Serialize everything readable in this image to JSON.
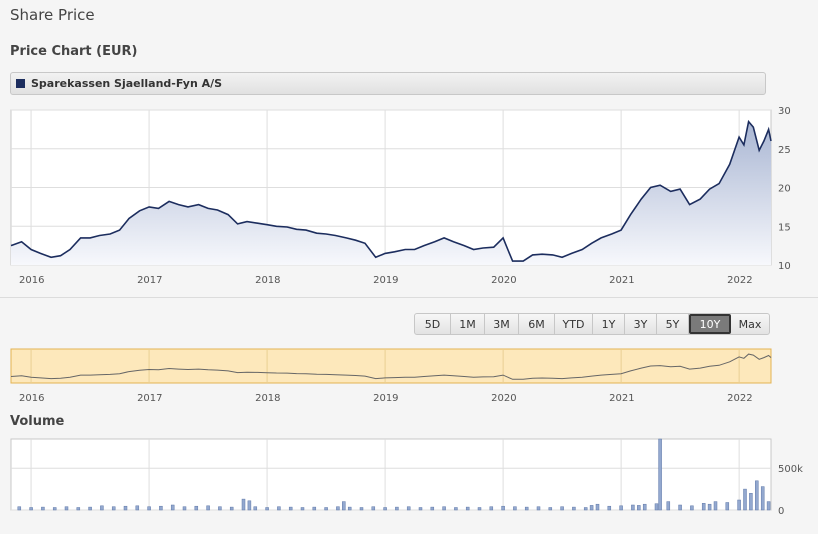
{
  "page": {
    "title": "Share Price"
  },
  "chart_title": "Price Chart (EUR)",
  "legend": {
    "label": "Sparekassen Sjaelland-Fyn A/S",
    "color": "#1c2d5e"
  },
  "range_buttons": [
    {
      "label": "5D",
      "active": false
    },
    {
      "label": "1M",
      "active": false
    },
    {
      "label": "3M",
      "active": false
    },
    {
      "label": "6M",
      "active": false
    },
    {
      "label": "YTD",
      "active": false
    },
    {
      "label": "1Y",
      "active": false
    },
    {
      "label": "3Y",
      "active": false
    },
    {
      "label": "5Y",
      "active": false
    },
    {
      "label": "10Y",
      "active": true
    },
    {
      "label": "Max",
      "active": false
    }
  ],
  "volume_title": "Volume",
  "chart_data": [
    {
      "type": "area",
      "series": [
        {
          "name": "Sparekassen Sjaelland-Fyn A/S",
          "color": "#1c2d5e",
          "x": [
            2015.83,
            2015.92,
            2016.0,
            2016.08,
            2016.17,
            2016.25,
            2016.33,
            2016.42,
            2016.5,
            2016.58,
            2016.67,
            2016.75,
            2016.83,
            2016.92,
            2017.0,
            2017.08,
            2017.17,
            2017.25,
            2017.33,
            2017.42,
            2017.5,
            2017.58,
            2017.67,
            2017.75,
            2017.83,
            2017.92,
            2018.0,
            2018.08,
            2018.17,
            2018.25,
            2018.33,
            2018.42,
            2018.5,
            2018.58,
            2018.67,
            2018.75,
            2018.83,
            2018.92,
            2019.0,
            2019.08,
            2019.17,
            2019.25,
            2019.33,
            2019.42,
            2019.5,
            2019.58,
            2019.67,
            2019.75,
            2019.83,
            2019.92,
            2020.0,
            2020.04,
            2020.08,
            2020.17,
            2020.25,
            2020.33,
            2020.42,
            2020.5,
            2020.58,
            2020.67,
            2020.75,
            2020.83,
            2020.92,
            2021.0,
            2021.08,
            2021.17,
            2021.25,
            2021.33,
            2021.42,
            2021.5,
            2021.58,
            2021.67,
            2021.75,
            2021.83,
            2021.92,
            2022.0,
            2022.04,
            2022.08,
            2022.12,
            2022.17,
            2022.21,
            2022.25,
            2022.27
          ],
          "y": [
            12.5,
            13.0,
            12.0,
            11.5,
            11.0,
            11.2,
            12.0,
            13.5,
            13.5,
            13.8,
            14.0,
            14.5,
            16.0,
            17.0,
            17.5,
            17.3,
            18.2,
            17.8,
            17.5,
            17.8,
            17.3,
            17.1,
            16.5,
            15.3,
            15.6,
            15.4,
            15.2,
            15.0,
            14.9,
            14.6,
            14.5,
            14.1,
            14.0,
            13.8,
            13.5,
            13.2,
            12.8,
            11.0,
            11.5,
            11.7,
            12.0,
            12.0,
            12.5,
            13.0,
            13.5,
            13.0,
            12.5,
            12.0,
            12.2,
            12.3,
            13.5,
            12.0,
            10.5,
            10.5,
            11.3,
            11.4,
            11.3,
            11.0,
            11.5,
            12.0,
            12.8,
            13.5,
            14.0,
            14.5,
            16.5,
            18.5,
            20.0,
            20.3,
            19.5,
            19.8,
            17.8,
            18.5,
            19.8,
            20.5,
            23.0,
            26.5,
            25.5,
            28.5,
            27.8,
            24.8,
            26.0,
            27.5,
            26.0
          ]
        }
      ],
      "xlim": [
        2015.83,
        2022.27
      ],
      "ylim": [
        10,
        30
      ],
      "x_ticks": [
        2016,
        2017,
        2018,
        2019,
        2020,
        2021,
        2022
      ],
      "x_tick_labels": [
        "2016",
        "2017",
        "2018",
        "2019",
        "2020",
        "2021",
        "2022"
      ],
      "y_ticks": [
        10,
        15,
        20,
        25,
        30
      ],
      "y_tick_labels": [
        "10",
        "15",
        "20",
        "25",
        "30"
      ],
      "grid": true,
      "fill_gradient": [
        "#a9b6d3",
        "#f7f8fc"
      ]
    },
    {
      "type": "line",
      "series": [
        {
          "name": "navigator",
          "ref": "price"
        }
      ],
      "x_tick_labels": [
        "2016",
        "2017",
        "2018",
        "2019",
        "2020",
        "2021",
        "2022"
      ],
      "background_color": "#fde8bb",
      "border_color": "#e3b353"
    },
    {
      "type": "bar",
      "series": [
        {
          "name": "Volume",
          "color": "#93a8cf",
          "x": [
            2015.9,
            2016.0,
            2016.1,
            2016.2,
            2016.3,
            2016.4,
            2016.5,
            2016.6,
            2016.7,
            2016.8,
            2016.9,
            2017.0,
            2017.1,
            2017.2,
            2017.3,
            2017.4,
            2017.5,
            2017.6,
            2017.7,
            2017.8,
            2017.85,
            2017.9,
            2018.0,
            2018.1,
            2018.2,
            2018.3,
            2018.4,
            2018.5,
            2018.6,
            2018.65,
            2018.7,
            2018.8,
            2018.9,
            2019.0,
            2019.1,
            2019.2,
            2019.3,
            2019.4,
            2019.5,
            2019.6,
            2019.7,
            2019.8,
            2019.9,
            2020.0,
            2020.1,
            2020.2,
            2020.3,
            2020.4,
            2020.5,
            2020.6,
            2020.7,
            2020.75,
            2020.8,
            2020.9,
            2021.0,
            2021.1,
            2021.15,
            2021.2,
            2021.3,
            2021.33,
            2021.4,
            2021.5,
            2021.6,
            2021.7,
            2021.75,
            2021.8,
            2021.9,
            2022.0,
            2022.05,
            2022.1,
            2022.15,
            2022.2,
            2022.25
          ],
          "y": [
            40,
            30,
            35,
            30,
            40,
            30,
            35,
            50,
            40,
            45,
            50,
            40,
            45,
            60,
            40,
            45,
            50,
            40,
            35,
            130,
            110,
            40,
            30,
            40,
            35,
            30,
            35,
            30,
            40,
            100,
            35,
            30,
            40,
            30,
            35,
            40,
            30,
            35,
            40,
            30,
            35,
            30,
            40,
            45,
            40,
            35,
            40,
            30,
            40,
            35,
            30,
            55,
            70,
            45,
            50,
            60,
            55,
            70,
            75,
            850,
            100,
            60,
            50,
            80,
            70,
            100,
            90,
            120,
            250,
            200,
            350,
            280,
            100
          ]
        }
      ],
      "xlim": [
        2015.83,
        2022.27
      ],
      "ylim": [
        0,
        850
      ],
      "y_ticks": [
        0,
        500
      ],
      "y_tick_labels": [
        "0",
        "500k"
      ],
      "grid": true
    }
  ]
}
